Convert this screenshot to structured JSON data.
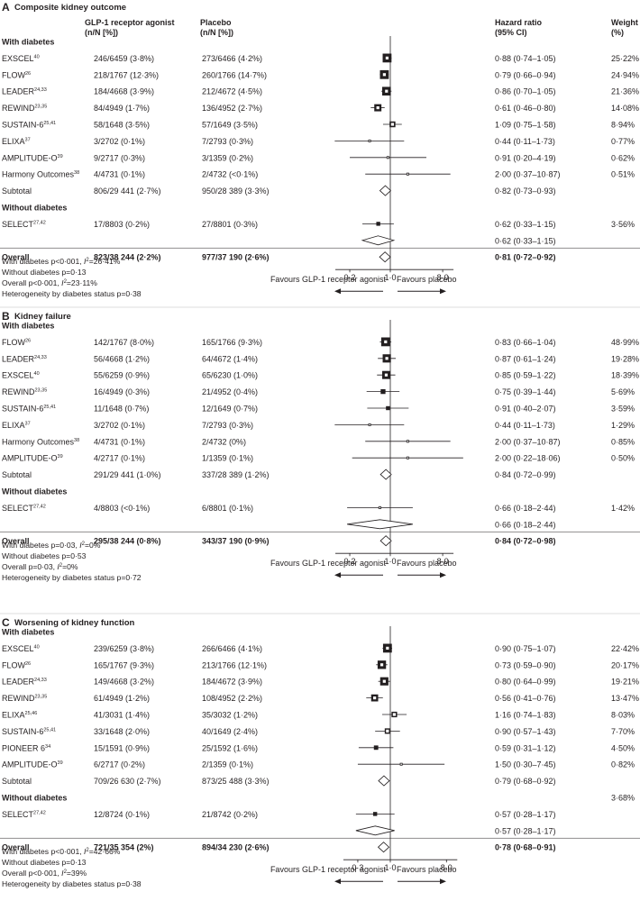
{
  "header": {
    "col_agonist": [
      "GLP-1 receptor agonist",
      "(n/N [%])"
    ],
    "col_placebo": [
      "Placebo",
      "(n/N [%])"
    ],
    "col_hr": [
      "Hazard ratio",
      "(95% CI)"
    ],
    "col_weight": [
      "Weight",
      "(%)"
    ]
  },
  "colors": {
    "square": "#231f20",
    "line": "#231f20",
    "text": "#231f20"
  },
  "chart_data": [
    {
      "type": "forest",
      "panel_letter": "A",
      "title": "Composite kidney outcome",
      "xscale": "log",
      "xlim": [
        0.1,
        15
      ],
      "ticks": [
        {
          "v": 0.2,
          "label": "0·2"
        },
        {
          "v": 1,
          "label": "1·0"
        },
        {
          "v": 8,
          "label": "8·0"
        }
      ],
      "favours_left": "Favours GLP-1 receptor agonist",
      "favours_right": "Favours placebo",
      "rows": [
        {
          "kind": "group",
          "label": "With diabetes"
        },
        {
          "kind": "study",
          "label": "EXSCEL",
          "ref": "40",
          "agonist": "246/6459 (3·8%)",
          "placebo": "273/6466 (4·2%)",
          "hr_text": "0·88 (0·74–1·05)",
          "weight": "25·22%",
          "hr": 0.88,
          "lo": 0.74,
          "hi": 1.05,
          "w": 25.22
        },
        {
          "kind": "study",
          "label": "FLOW",
          "ref": "26",
          "agonist": "218/1767 (12·3%)",
          "placebo": "260/1766 (14·7%)",
          "hr_text": "0·79 (0·66–0·94)",
          "weight": "24·94%",
          "hr": 0.79,
          "lo": 0.66,
          "hi": 0.94,
          "w": 24.94
        },
        {
          "kind": "study",
          "label": "LEADER",
          "ref": "24,33",
          "agonist": "184/4668 (3·9%)",
          "placebo": "212/4672 (4·5%)",
          "hr_text": "0·86 (0·70–1·05)",
          "weight": "21·36%",
          "hr": 0.86,
          "lo": 0.7,
          "hi": 1.05,
          "w": 21.36
        },
        {
          "kind": "study",
          "label": "REWIND",
          "ref": "23,35",
          "agonist": "84/4949 (1·7%)",
          "placebo": "136/4952 (2·7%)",
          "hr_text": "0·61 (0·46–0·80)",
          "weight": "14·08%",
          "hr": 0.61,
          "lo": 0.46,
          "hi": 0.8,
          "w": 14.08
        },
        {
          "kind": "study",
          "label": "SUSTAIN-6",
          "ref": "25,41",
          "agonist": "58/1648 (3·5%)",
          "placebo": "57/1649 (3·5%)",
          "hr_text": "1·09 (0·75–1·58)",
          "weight": "8·94%",
          "hr": 1.09,
          "lo": 0.75,
          "hi": 1.58,
          "w": 8.94
        },
        {
          "kind": "study",
          "label": "ELIXA",
          "ref": "37",
          "agonist": "3/2702 (0·1%)",
          "placebo": "7/2793 (0·3%)",
          "hr_text": "0·44 (0·11–1·73)",
          "weight": "0·77%",
          "hr": 0.44,
          "lo": 0.11,
          "hi": 1.73,
          "w": 0.77
        },
        {
          "kind": "study",
          "label": "AMPLITUDE-O",
          "ref": "39",
          "agonist": "9/2717 (0·3%)",
          "placebo": "3/1359 (0·2%)",
          "hr_text": "0·91 (0·20–4·19)",
          "weight": "0·62%",
          "hr": 0.91,
          "lo": 0.2,
          "hi": 4.19,
          "w": 0.62
        },
        {
          "kind": "study",
          "label": "Harmony Outcomes",
          "ref": "38",
          "agonist": "4/4731 (0·1%)",
          "placebo": "2/4732 (<0·1%)",
          "hr_text": "2·00 (0·37–10·87)",
          "weight": "0·51%",
          "hr": 2.0,
          "lo": 0.37,
          "hi": 10.87,
          "w": 0.51
        },
        {
          "kind": "subtotal",
          "label": "Subtotal",
          "agonist": "806/29 441 (2·7%)",
          "placebo": "950/28 389 (3·3%)",
          "hr_text": "0·82 (0·73–0·93)",
          "hr": 0.82,
          "lo": 0.73,
          "hi": 0.93
        },
        {
          "kind": "group",
          "label": "Without diabetes"
        },
        {
          "kind": "study",
          "label": "SELECT",
          "ref": "27,42",
          "agonist": "17/8803 (0·2%)",
          "placebo": "27/8801 (0·3%)",
          "hr_text": "0·62 (0·33–1·15)",
          "weight": "3·56%",
          "hr": 0.62,
          "lo": 0.33,
          "hi": 1.15,
          "w": 3.56
        },
        {
          "kind": "subtotal",
          "label": "",
          "hr_text": "0·62 (0·33–1·15)",
          "hr": 0.62,
          "lo": 0.33,
          "hi": 1.15
        },
        {
          "kind": "overall",
          "label": "Overall",
          "agonist": "823/38 244 (2·2%)",
          "placebo": "977/37 190 (2·6%)",
          "hr_text": "0·81 (0·72–0·92)",
          "hr": 0.81,
          "lo": 0.72,
          "hi": 0.92
        }
      ],
      "notes": [
        "With diabetes p<0·001, I²=26·41%",
        "Without diabetes p=0·13",
        "Overall p<0·001, I²=23·11%",
        "Heterogeneity by diabetes status p=0·38"
      ]
    },
    {
      "type": "forest",
      "panel_letter": "B",
      "title": "Kidney failure",
      "xscale": "log",
      "xlim": [
        0.1,
        15
      ],
      "ticks": [
        {
          "v": 0.2,
          "label": "0·2"
        },
        {
          "v": 1,
          "label": "1·0"
        },
        {
          "v": 8,
          "label": "8·0"
        }
      ],
      "favours_left": "Favours GLP-1 receptor agonist",
      "favours_right": "Favours placebo",
      "rows": [
        {
          "kind": "group",
          "label": "With diabetes"
        },
        {
          "kind": "study",
          "label": "FLOW",
          "ref": "26",
          "agonist": "142/1767 (8·0%)",
          "placebo": "165/1766 (9·3%)",
          "hr_text": "0·83 (0·66–1·04)",
          "weight": "48·99%",
          "hr": 0.83,
          "lo": 0.66,
          "hi": 1.04,
          "w": 48.99
        },
        {
          "kind": "study",
          "label": "LEADER",
          "ref": "24,33",
          "agonist": "56/4668 (1·2%)",
          "placebo": "64/4672 (1·4%)",
          "hr_text": "0·87 (0·61–1·24)",
          "weight": "19·28%",
          "hr": 0.87,
          "lo": 0.61,
          "hi": 1.24,
          "w": 19.28
        },
        {
          "kind": "study",
          "label": "EXSCEL",
          "ref": "40",
          "agonist": "55/6259 (0·9%)",
          "placebo": "65/6230 (1·0%)",
          "hr_text": "0·85 (0·59–1·22)",
          "weight": "18·39%",
          "hr": 0.85,
          "lo": 0.59,
          "hi": 1.22,
          "w": 18.39
        },
        {
          "kind": "study",
          "label": "REWIND",
          "ref": "23,35",
          "agonist": "16/4949 (0·3%)",
          "placebo": "21/4952 (0·4%)",
          "hr_text": "0·75 (0·39–1·44)",
          "weight": "5·69%",
          "hr": 0.75,
          "lo": 0.39,
          "hi": 1.44,
          "w": 5.69
        },
        {
          "kind": "study",
          "label": "SUSTAIN-6",
          "ref": "25,41",
          "agonist": "11/1648 (0·7%)",
          "placebo": "12/1649 (0·7%)",
          "hr_text": "0·91 (0·40–2·07)",
          "weight": "3·59%",
          "hr": 0.91,
          "lo": 0.4,
          "hi": 2.07,
          "w": 3.59
        },
        {
          "kind": "study",
          "label": "ELIXA",
          "ref": "37",
          "agonist": "3/2702 (0·1%)",
          "placebo": "7/2793 (0·3%)",
          "hr_text": "0·44 (0·11–1·73)",
          "weight": "1·29%",
          "hr": 0.44,
          "lo": 0.11,
          "hi": 1.73,
          "w": 1.29
        },
        {
          "kind": "study",
          "label": "Harmony Outcomes",
          "ref": "38",
          "agonist": "4/4731 (0·1%)",
          "placebo": "2/4732 (0%)",
          "hr_text": "2·00 (0·37–10·87)",
          "weight": "0·85%",
          "hr": 2.0,
          "lo": 0.37,
          "hi": 10.87,
          "w": 0.85
        },
        {
          "kind": "study",
          "label": "AMPLITUDE-O",
          "ref": "39",
          "agonist": "4/2717 (0·1%)",
          "placebo": "1/1359 (0·1%)",
          "hr_text": "2·00 (0·22–18·06)",
          "weight": "0·50%",
          "hr": 2.0,
          "lo": 0.22,
          "hi": 18.06,
          "w": 0.5
        },
        {
          "kind": "subtotal",
          "label": "Subtotal",
          "agonist": "291/29 441 (1·0%)",
          "placebo": "337/28 389 (1·2%)",
          "hr_text": "0·84 (0·72–0·99)",
          "hr": 0.84,
          "lo": 0.72,
          "hi": 0.99
        },
        {
          "kind": "group",
          "label": "Without diabetes"
        },
        {
          "kind": "study",
          "label": "SELECT",
          "ref": "27,42",
          "agonist": "4/8803 (<0·1%)",
          "placebo": "6/8801 (0·1%)",
          "hr_text": "0·66 (0·18–2·44)",
          "weight": "1·42%",
          "hr": 0.66,
          "lo": 0.18,
          "hi": 2.44,
          "w": 1.42
        },
        {
          "kind": "subtotal",
          "label": "",
          "hr_text": "0·66 (0·18–2·44)",
          "hr": 0.66,
          "lo": 0.18,
          "hi": 2.44
        },
        {
          "kind": "overall",
          "label": "Overall",
          "agonist": "295/38 244 (0·8%)",
          "placebo": "343/37 190 (0·9%)",
          "hr_text": "0·84 (0·72–0·98)",
          "hr": 0.84,
          "lo": 0.72,
          "hi": 0.98
        }
      ],
      "notes": [
        "With diabetes p=0·03, I²=0%",
        "Without diabetes p=0·53",
        "Overall p=0·03, I²=0%",
        "Heterogeneity by diabetes status p=0·72"
      ]
    },
    {
      "type": "forest",
      "panel_letter": "C",
      "title": "Worsening of kidney function",
      "xscale": "log",
      "xlim": [
        0.14,
        15
      ],
      "ticks": [
        {
          "v": 0.3,
          "label": "0·3"
        },
        {
          "v": 1,
          "label": "1·0"
        },
        {
          "v": 8,
          "label": "8·0"
        }
      ],
      "favours_left": "Favours GLP-1 receptor agonist",
      "favours_right": "Favours placebo",
      "rows": [
        {
          "kind": "group",
          "label": "With diabetes"
        },
        {
          "kind": "study",
          "label": "EXSCEL",
          "ref": "40",
          "agonist": "239/6259 (3·8%)",
          "placebo": "266/6466 (4·1%)",
          "hr_text": "0·90 (0·75–1·07)",
          "weight": "22·42%",
          "hr": 0.9,
          "lo": 0.75,
          "hi": 1.07,
          "w": 22.42
        },
        {
          "kind": "study",
          "label": "FLOW",
          "ref": "26",
          "agonist": "165/1767 (9·3%)",
          "placebo": "213/1766 (12·1%)",
          "hr_text": "0·73 (0·59–0·90)",
          "weight": "20·17%",
          "hr": 0.73,
          "lo": 0.59,
          "hi": 0.9,
          "w": 20.17
        },
        {
          "kind": "study",
          "label": "LEADER",
          "ref": "24,33",
          "agonist": "149/4668 (3·2%)",
          "placebo": "184/4672 (3·9%)",
          "hr_text": "0·80 (0·64–0·99)",
          "weight": "19·21%",
          "hr": 0.8,
          "lo": 0.64,
          "hi": 0.99,
          "w": 19.21
        },
        {
          "kind": "study",
          "label": "REWIND",
          "ref": "23,35",
          "agonist": "61/4949 (1·2%)",
          "placebo": "108/4952 (2·2%)",
          "hr_text": "0·56 (0·41–0·76)",
          "weight": "13·47%",
          "hr": 0.56,
          "lo": 0.41,
          "hi": 0.76,
          "w": 13.47
        },
        {
          "kind": "study",
          "label": "ELIXA",
          "ref": "25,46",
          "agonist": "41/3031 (1·4%)",
          "placebo": "35/3032 (1·2%)",
          "hr_text": "1·16 (0·74–1·83)",
          "weight": "8·03%",
          "hr": 1.16,
          "lo": 0.74,
          "hi": 1.83,
          "w": 8.03
        },
        {
          "kind": "study",
          "label": "SUSTAIN-6",
          "ref": "25,41",
          "agonist": "33/1648 (2·0%)",
          "placebo": "40/1649 (2·4%)",
          "hr_text": "0·90 (0·57–1·43)",
          "weight": "7·70%",
          "hr": 0.9,
          "lo": 0.57,
          "hi": 1.43,
          "w": 7.7
        },
        {
          "kind": "study",
          "label": "PIONEER 6",
          "ref": "34",
          "agonist": "15/1591 (0·9%)",
          "placebo": "25/1592 (1·6%)",
          "hr_text": "0·59 (0·31–1·12)",
          "weight": "4·50%",
          "hr": 0.59,
          "lo": 0.31,
          "hi": 1.12,
          "w": 4.5
        },
        {
          "kind": "study",
          "label": "AMPLITUDE-O",
          "ref": "39",
          "agonist": "6/2717 (0·2%)",
          "placebo": "2/1359 (0·1%)",
          "hr_text": "1·50 (0·30–7·45)",
          "weight": "0·82%",
          "hr": 1.5,
          "lo": 0.3,
          "hi": 7.45,
          "w": 0.82
        },
        {
          "kind": "subtotal",
          "label": "Subtotal",
          "agonist": "709/26 630 (2·7%)",
          "placebo": "873/25 488 (3·3%)",
          "hr_text": "0·79 (0·68–0·92)",
          "hr": 0.79,
          "lo": 0.68,
          "hi": 0.92
        },
        {
          "kind": "group",
          "label": "Without diabetes",
          "weight": "3·68%"
        },
        {
          "kind": "study",
          "label": "SELECT",
          "ref": "27,42",
          "agonist": "12/8724 (0·1%)",
          "placebo": "21/8742 (0·2%)",
          "hr_text": "0·57 (0·28–1·17)",
          "weight": "",
          "hr": 0.57,
          "lo": 0.28,
          "hi": 1.17,
          "w": 3.68
        },
        {
          "kind": "subtotal",
          "label": "",
          "hr_text": "0·57 (0·28–1·17)",
          "hr": 0.57,
          "lo": 0.28,
          "hi": 1.17
        },
        {
          "kind": "overall",
          "label": "Overall",
          "agonist": "721/35 354 (2%)",
          "placebo": "894/34 230 (2·6%)",
          "hr_text": "0·78 (0·68–0·91)",
          "hr": 0.78,
          "lo": 0.68,
          "hi": 0.91
        }
      ],
      "notes": [
        "With diabetes p<0·001, I²=42·66%",
        "Without diabetes p=0·13",
        "Overall p<0·001, I²=39%",
        "Heterogeneity by diabetes status p=0·38"
      ]
    }
  ]
}
